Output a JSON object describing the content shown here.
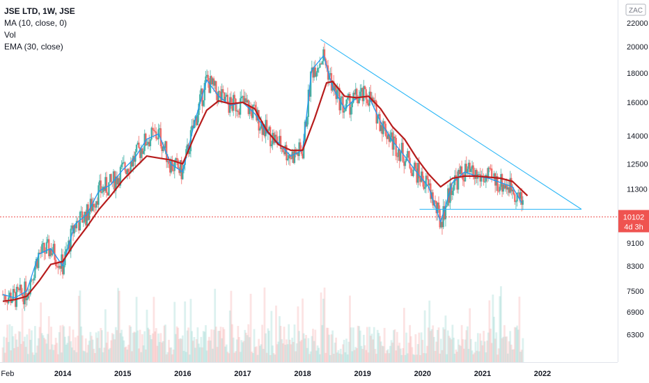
{
  "legend": {
    "title": "JSE LTD, 1W, JSE",
    "ma": "MA (10, close, 0)",
    "vol": "Vol",
    "ema": "EMA (30, close)"
  },
  "currency": "ZAC",
  "price_label": {
    "value": "10102",
    "countdown": "4d 3h",
    "color": "#ef5350"
  },
  "colors": {
    "up": "#26a69a",
    "down": "#ef5350",
    "ma": "#2196f3",
    "ema": "#b71c1c",
    "trendline": "#29b6f6",
    "axis_text": "#131722"
  },
  "chart_data": {
    "type": "line",
    "scale": "log",
    "ylim": [
      5900,
      22500
    ],
    "xlim": [
      2013.0,
      2023.3
    ],
    "x_ticks": [
      {
        "x": 2013.08,
        "label": "Feb"
      },
      {
        "x": 2014.0,
        "label": "2014"
      },
      {
        "x": 2015.0,
        "label": "2015"
      },
      {
        "x": 2016.0,
        "label": "2016"
      },
      {
        "x": 2017.0,
        "label": "2017"
      },
      {
        "x": 2018.0,
        "label": "2018"
      },
      {
        "x": 2019.0,
        "label": "2019"
      },
      {
        "x": 2020.0,
        "label": "2020"
      },
      {
        "x": 2021.0,
        "label": "2021"
      },
      {
        "x": 2022.0,
        "label": "2022"
      }
    ],
    "y_ticks": [
      6300,
      6900,
      7500,
      8300,
      9100,
      11300,
      12500,
      14000,
      16000,
      18000,
      20000,
      22000
    ],
    "series": [
      {
        "name": "MA (10, close, 0)",
        "x": [
          2013.0,
          2013.2,
          2013.4,
          2013.6,
          2013.8,
          2014.0,
          2014.2,
          2014.4,
          2014.6,
          2014.8,
          2015.0,
          2015.2,
          2015.4,
          2015.6,
          2015.8,
          2016.0,
          2016.2,
          2016.4,
          2016.6,
          2016.8,
          2017.0,
          2017.2,
          2017.4,
          2017.6,
          2017.8,
          2018.0,
          2018.15,
          2018.35,
          2018.5,
          2018.7,
          2018.9,
          2019.1,
          2019.3,
          2019.5,
          2019.7,
          2019.9,
          2020.1,
          2020.3,
          2020.5,
          2020.7,
          2020.9,
          2021.1,
          2021.3,
          2021.5,
          2021.65
        ],
        "values": [
          7400,
          7300,
          7500,
          8700,
          8900,
          8300,
          9800,
          10200,
          11200,
          11500,
          12200,
          12800,
          13800,
          14100,
          12500,
          12100,
          14800,
          17500,
          16400,
          15800,
          16000,
          15300,
          14200,
          13600,
          12900,
          13200,
          18200,
          19300,
          17000,
          15600,
          16300,
          16400,
          14800,
          13700,
          12900,
          12100,
          11400,
          9900,
          11600,
          12100,
          11900,
          11800,
          11600,
          11400,
          10700
        ]
      },
      {
        "name": "EMA (30, close)",
        "x": [
          2013.0,
          2013.2,
          2013.4,
          2013.6,
          2013.8,
          2014.0,
          2014.2,
          2014.4,
          2014.6,
          2014.8,
          2015.0,
          2015.2,
          2015.4,
          2015.6,
          2015.8,
          2016.0,
          2016.2,
          2016.4,
          2016.6,
          2016.8,
          2017.0,
          2017.2,
          2017.4,
          2017.6,
          2017.8,
          2018.0,
          2018.2,
          2018.4,
          2018.5,
          2018.7,
          2018.9,
          2019.1,
          2019.3,
          2019.5,
          2019.7,
          2019.9,
          2020.1,
          2020.3,
          2020.5,
          2020.7,
          2020.9,
          2021.1,
          2021.3,
          2021.5,
          2021.75
        ],
        "values": [
          7200,
          7250,
          7350,
          7800,
          8350,
          8450,
          9100,
          9700,
          10400,
          11000,
          11700,
          12300,
          12900,
          12800,
          12700,
          12500,
          14000,
          15500,
          16100,
          15900,
          16000,
          15600,
          14300,
          13500,
          13200,
          13200,
          15000,
          17300,
          17400,
          16400,
          16300,
          16400,
          15600,
          14500,
          13800,
          12800,
          12000,
          11400,
          11800,
          11900,
          11900,
          11850,
          11800,
          11650,
          11000
        ]
      },
      {
        "name": "",
        "x": [
          2018.3,
          2022.65
        ],
        "values": [
          20600,
          10420
        ]
      },
      {
        "name": "",
        "x": [
          2019.95,
          2022.65
        ],
        "values": [
          10420,
          10420
        ]
      }
    ],
    "last_price": 10102
  }
}
